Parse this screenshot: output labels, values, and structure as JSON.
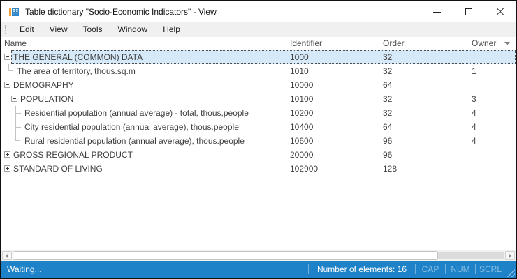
{
  "window": {
    "title": "Table dictionary \"Socio-Economic Indicators\" - View"
  },
  "menu": {
    "items": [
      "Edit",
      "View",
      "Tools",
      "Window",
      "Help"
    ]
  },
  "table": {
    "columns": [
      "Name",
      "Identifier",
      "Order",
      "Owner"
    ],
    "rows": [
      {
        "name": "THE GENERAL (COMMON) DATA",
        "identifier": "1000",
        "order": "32",
        "owner": "",
        "level": 0,
        "expander": "minus",
        "connector": null,
        "selected": true
      },
      {
        "name": "The area of territory, thous.sq.m",
        "identifier": "1010",
        "order": "32",
        "owner": "1",
        "level": 1,
        "expander": null,
        "connector": "last",
        "selected": false
      },
      {
        "name": "DEMOGRAPHY",
        "identifier": "10000",
        "order": "64",
        "owner": "",
        "level": 0,
        "expander": "minus",
        "connector": null,
        "selected": false
      },
      {
        "name": "POPULATION",
        "identifier": "10100",
        "order": "32",
        "owner": "3",
        "level": 1,
        "expander": "minus",
        "connector": null,
        "selected": false
      },
      {
        "name": "Residential population (annual average) - total, thous,people",
        "identifier": "10200",
        "order": "32",
        "owner": "4",
        "level": 2,
        "expander": null,
        "connector": "mid",
        "selected": false
      },
      {
        "name": "City residential population (annual average), thous.people",
        "identifier": "10400",
        "order": "64",
        "owner": "4",
        "level": 2,
        "expander": null,
        "connector": "mid",
        "selected": false
      },
      {
        "name": "Rural residential population (annual average), thous.people",
        "identifier": "10600",
        "order": "96",
        "owner": "4",
        "level": 2,
        "expander": null,
        "connector": "last",
        "selected": false
      },
      {
        "name": "GROSS REGIONAL PRODUCT",
        "identifier": "20000",
        "order": "96",
        "owner": "",
        "level": 0,
        "expander": "plus",
        "connector": null,
        "selected": false
      },
      {
        "name": "STANDARD OF LIVING",
        "identifier": "102900",
        "order": "128",
        "owner": "",
        "level": 0,
        "expander": "plus",
        "connector": null,
        "selected": false
      }
    ]
  },
  "statusbar": {
    "left": "Waiting...",
    "elements_count": "Number of elements: 16",
    "indicators": [
      "CAP",
      "NUM",
      "SCRL"
    ]
  },
  "colors": {
    "status_blue": "#1d82c8",
    "selection_bg": "#d6e9f8",
    "icon_blue": "#2e86c8",
    "icon_orange": "#f0a030"
  }
}
